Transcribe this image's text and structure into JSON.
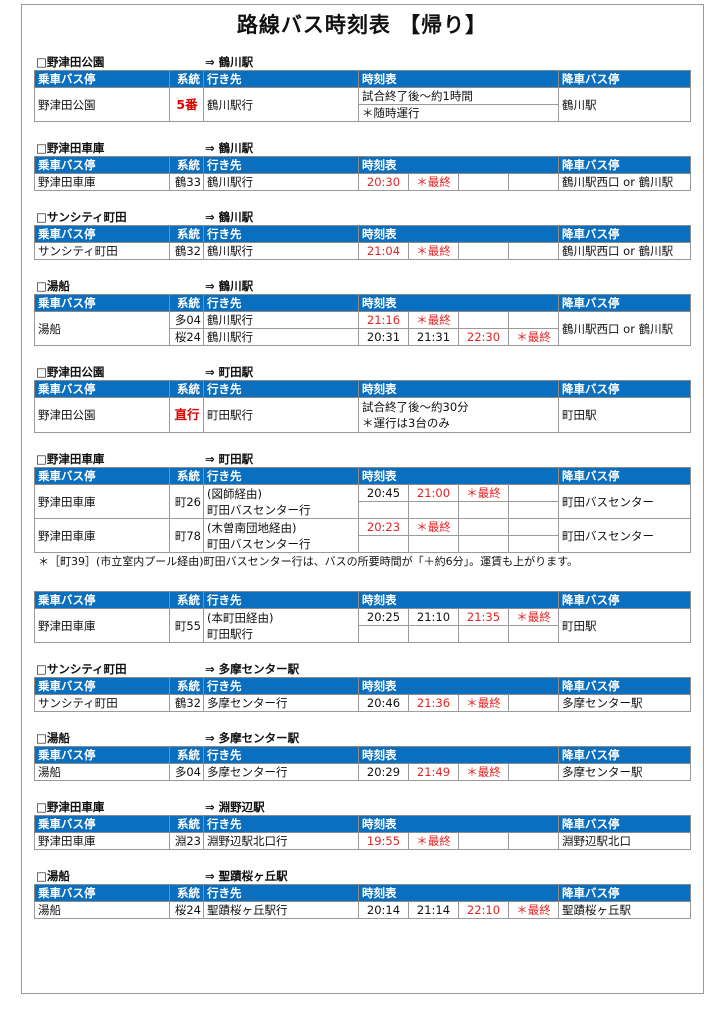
{
  "title": "路線バス時刻表 【帰り】",
  "headers": {
    "stop": "乗車バス停",
    "route": "系統",
    "dest": "行き先",
    "schedule": "時刻表",
    "alight": "降車バス停"
  },
  "colors": {
    "header_bg": "#0a6fbf",
    "last_bus": "#e02424",
    "highlight_route": "#e00000"
  },
  "sections": [
    {
      "from": "□野津田公園",
      "to": "⇒ 鶴川駅",
      "rows": [
        {
          "stop": "野津田公園",
          "route": "5番",
          "route_highlight": true,
          "dest": [
            "鶴川駅行"
          ],
          "alight": "鶴川駅",
          "lines": [
            {
              "notes": [
                "試合終了後～約1時間"
              ]
            },
            {
              "notes": [
                "＊随時運行"
              ]
            }
          ]
        }
      ]
    },
    {
      "from": "□野津田車庫",
      "to": "⇒ 鶴川駅",
      "rows": [
        {
          "stop": "野津田車庫",
          "route": "鶴33",
          "dest": [
            "鶴川駅行"
          ],
          "alight": "鶴川駅西口 or 鶴川駅",
          "lines": [
            {
              "cells": [
                "20:30",
                "＊最終",
                "",
                ""
              ]
            }
          ]
        }
      ]
    },
    {
      "from": "□サンシティ町田",
      "to": "⇒ 鶴川駅",
      "rows": [
        {
          "stop": "サンシティ町田",
          "route": "鶴32",
          "dest": [
            "鶴川駅行"
          ],
          "alight": "鶴川駅西口 or 鶴川駅",
          "lines": [
            {
              "cells": [
                "21:04",
                "＊最終",
                "",
                ""
              ]
            }
          ]
        }
      ]
    },
    {
      "from": "□湯船",
      "to": "⇒ 鶴川駅",
      "rows": [
        {
          "stop": "湯船",
          "alight": "鶴川駅西口 or 鶴川駅",
          "lines": [
            {
              "route": "多04",
              "dest": "鶴川駅行",
              "cells": [
                "21:16",
                "＊最終",
                "",
                ""
              ]
            },
            {
              "route": "桜24",
              "dest": "鶴川駅行",
              "cells": [
                "20:31",
                "21:31",
                "22:30",
                "＊最終"
              ]
            }
          ]
        }
      ]
    },
    {
      "from": "□野津田公園",
      "to": "⇒ 町田駅",
      "rows": [
        {
          "stop": "野津田公園",
          "route": "直行",
          "route_highlight": true,
          "dest": [
            "町田駅行"
          ],
          "alight": "町田駅",
          "lines": [
            {
              "notes": [
                "試合終了後～約30分",
                "＊運行は3台のみ"
              ]
            }
          ]
        }
      ]
    },
    {
      "from": "□野津田車庫",
      "to": "⇒ 町田駅",
      "rows": [
        {
          "stop": "野津田車庫",
          "route": "町26",
          "dest": [
            "(図師経由)",
            "町田バスセンター行"
          ],
          "alight": "町田バスセンター",
          "lines": [
            {
              "cells": [
                "20:45",
                "21:00",
                "＊最終",
                ""
              ]
            },
            {
              "cells": [
                "",
                "",
                "",
                ""
              ]
            }
          ]
        },
        {
          "stop": "野津田車庫",
          "route": "町78",
          "dest": [
            "(木曽南団地経由)",
            "町田バスセンター行"
          ],
          "alight": "町田バスセンター",
          "lines": [
            {
              "cells": [
                "20:23",
                "＊最終",
                "",
                ""
              ]
            },
            {
              "cells": [
                "",
                "",
                "",
                ""
              ]
            }
          ]
        }
      ],
      "footnote": "＊［町39］(市立室内プール経由)町田バスセンター行は、バスの所要時間が「＋約6分」。運賃も上がります。"
    },
    {
      "from": "",
      "to": "",
      "rows": [
        {
          "stop": "野津田車庫",
          "route": "町55",
          "dest": [
            "(本町田経由)",
            "町田駅行"
          ],
          "alight": "町田駅",
          "lines": [
            {
              "cells": [
                "20:25",
                "21:10",
                "21:35",
                "＊最終"
              ]
            },
            {
              "cells": [
                "",
                "",
                "",
                ""
              ]
            }
          ]
        }
      ]
    },
    {
      "from": "□サンシティ町田",
      "to": "⇒ 多摩センター駅",
      "rows": [
        {
          "stop": "サンシティ町田",
          "route": "鶴32",
          "dest": [
            "多摩センター行"
          ],
          "alight": "多摩センター駅",
          "lines": [
            {
              "cells": [
                "20:46",
                "21:36",
                "＊最終",
                ""
              ]
            }
          ]
        }
      ]
    },
    {
      "from": "□湯船",
      "to": "⇒ 多摩センター駅",
      "rows": [
        {
          "stop": "湯船",
          "route": "多04",
          "dest": [
            "多摩センター行"
          ],
          "alight": "多摩センター駅",
          "lines": [
            {
              "cells": [
                "20:29",
                "21:49",
                "＊最終",
                ""
              ]
            }
          ]
        }
      ]
    },
    {
      "from": "□野津田車庫",
      "to": "⇒ 淵野辺駅",
      "rows": [
        {
          "stop": "野津田車庫",
          "route": "淵23",
          "dest": [
            "淵野辺駅北口行"
          ],
          "alight": "淵野辺駅北口",
          "lines": [
            {
              "cells": [
                "19:55",
                "＊最終",
                "",
                ""
              ]
            }
          ]
        }
      ]
    },
    {
      "from": "□湯船",
      "to": "⇒ 聖蹟桜ヶ丘駅",
      "rows": [
        {
          "stop": "湯船",
          "route": "桜24",
          "dest": [
            "聖蹟桜ヶ丘駅行"
          ],
          "alight": "聖蹟桜ヶ丘駅",
          "lines": [
            {
              "cells": [
                "20:14",
                "21:14",
                "22:10",
                "＊最終"
              ]
            }
          ]
        }
      ]
    }
  ]
}
